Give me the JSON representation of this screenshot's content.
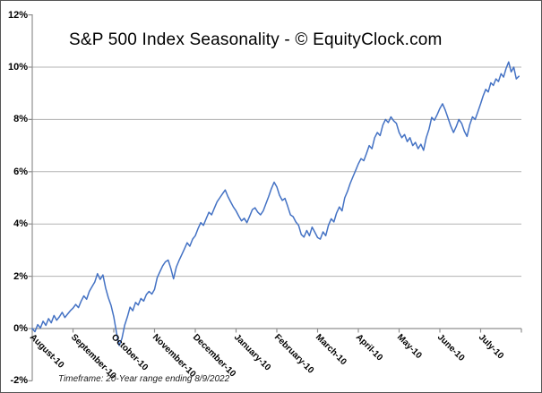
{
  "window": {
    "background": "#ffffff",
    "border_color": "#555555"
  },
  "chart_data": {
    "type": "line",
    "title": "S&P 500 Index Seasonality - © EquityClock.com",
    "footnote": "Timeframe: 20-Year range ending 8/9/2022",
    "grid": true,
    "legend": "none",
    "y_axis": {
      "unit": "%",
      "min": -2,
      "max": 12,
      "tick_step": 2,
      "tick_values": [
        12,
        10,
        8,
        6,
        4,
        2,
        0,
        -2
      ],
      "tick_labels": [
        "12%",
        "10%",
        "8%",
        "6%",
        "4%",
        "2%",
        "0%",
        "-2%"
      ],
      "gridline_values": [
        10,
        8,
        6,
        4,
        2
      ],
      "zero_axis": true
    },
    "categories": [
      "August-10",
      "September-10",
      "October-10",
      "November-10",
      "December-10",
      "January-10",
      "February-10",
      "March-10",
      "April-10",
      "May-10",
      "June-10",
      "July-10"
    ],
    "series": {
      "months": [
        {
          "month": "August-10",
          "values": [
            0.0,
            -0.12,
            0.15,
            0.02,
            0.28,
            0.12,
            0.38,
            0.22,
            0.5,
            0.32,
            0.45,
            0.62,
            0.42,
            0.55,
            0.68
          ]
        },
        {
          "month": "September-10",
          "values": [
            0.78,
            0.92,
            0.8,
            1.05,
            1.25,
            1.12,
            1.42,
            1.6,
            1.78,
            2.1,
            1.88,
            2.05,
            1.55,
            1.18,
            0.88
          ]
        },
        {
          "month": "October-10",
          "values": [
            0.45,
            -0.15,
            -0.65,
            -0.38,
            0.12,
            0.45,
            0.82,
            0.68,
            1.0,
            0.9,
            1.15,
            1.05,
            1.3,
            1.42,
            1.32
          ]
        },
        {
          "month": "November-10",
          "values": [
            1.5,
            1.95,
            2.18,
            2.4,
            2.55,
            2.62,
            2.3,
            1.9,
            2.35,
            2.6,
            2.82,
            3.05,
            3.28,
            3.15,
            3.42
          ]
        },
        {
          "month": "December-10",
          "values": [
            3.55,
            3.82,
            4.05,
            3.95,
            4.2,
            4.45,
            4.35,
            4.6,
            4.85,
            5.0,
            5.15,
            5.3,
            5.05,
            4.85,
            4.65
          ]
        },
        {
          "month": "January-10",
          "values": [
            4.5,
            4.3,
            4.12,
            4.22,
            4.05,
            4.3,
            4.55,
            4.62,
            4.45,
            4.35,
            4.5,
            4.78,
            5.05,
            5.35,
            5.6
          ]
        },
        {
          "month": "February-10",
          "values": [
            5.42,
            5.1,
            4.9,
            4.98,
            4.68,
            4.35,
            4.28,
            4.08,
            3.95,
            3.6,
            3.5,
            3.75,
            3.55,
            3.88,
            3.68
          ]
        },
        {
          "month": "March-10",
          "values": [
            3.48,
            3.42,
            3.7,
            3.55,
            3.95,
            4.2,
            4.08,
            4.42,
            4.65,
            4.5,
            5.0,
            5.25,
            5.55,
            5.8,
            6.05
          ]
        },
        {
          "month": "April-10",
          "values": [
            6.3,
            6.5,
            6.42,
            6.7,
            7.0,
            6.88,
            7.3,
            7.5,
            7.38,
            7.78,
            8.0,
            7.88,
            8.1,
            7.95,
            7.85
          ]
        },
        {
          "month": "May-10",
          "values": [
            7.5,
            7.3,
            7.42,
            7.15,
            7.3,
            7.0,
            7.12,
            6.88,
            7.05,
            6.82,
            7.3,
            7.63,
            8.08,
            7.97,
            8.18
          ]
        },
        {
          "month": "June-10",
          "values": [
            8.42,
            8.6,
            8.35,
            8.05,
            7.75,
            7.5,
            7.72,
            8.0,
            7.85,
            7.55,
            7.35,
            7.8,
            8.1,
            8.0,
            8.3
          ]
        },
        {
          "month": "July-10",
          "values": [
            8.6,
            8.9,
            9.15,
            9.05,
            9.4,
            9.3,
            9.55,
            9.45,
            9.75,
            9.62,
            9.95,
            10.2,
            9.82,
            10.0,
            9.55,
            9.65
          ]
        }
      ]
    },
    "colors": {
      "line": "#4472c4",
      "gridline": "#b3b3b3",
      "axis": "#8f8f8f",
      "text": "#000000"
    }
  }
}
